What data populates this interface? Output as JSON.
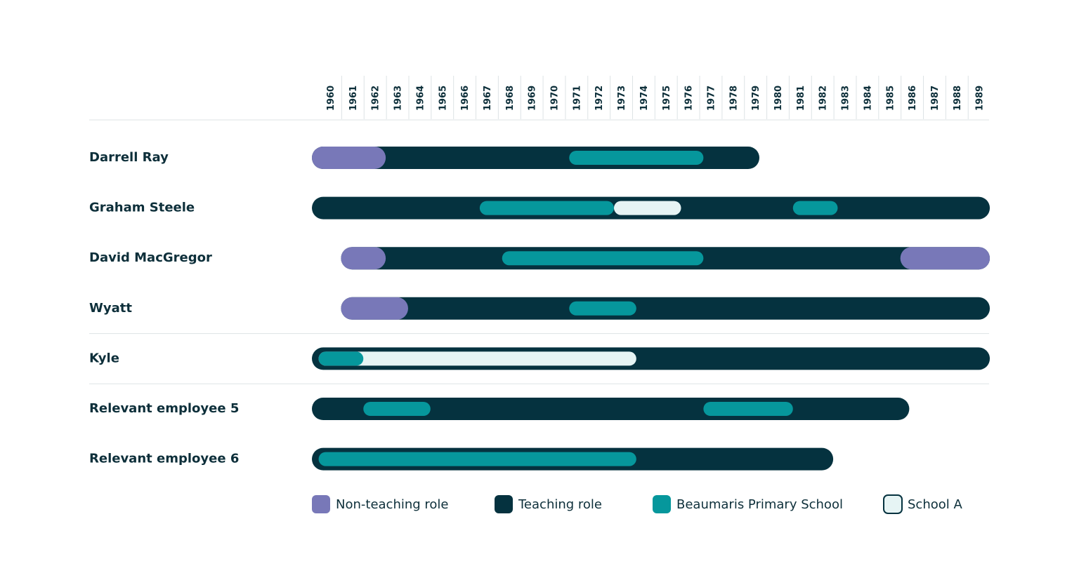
{
  "colors": {
    "non_teaching": "#7878b8",
    "teaching": "#05323f",
    "beaumaris": "#06979c",
    "school_a": "#e6f4f4",
    "divider": "#dde3e5",
    "text": "#0d2f3a"
  },
  "chart_data": {
    "type": "timeline",
    "years": [
      "1960",
      "1961",
      "1962",
      "1963",
      "1964",
      "1965",
      "1966",
      "1967",
      "1968",
      "1969",
      "1970",
      "1971",
      "1972",
      "1973",
      "1974",
      "1975",
      "1976",
      "1977",
      "1978",
      "1979",
      "1980",
      "1981",
      "1982",
      "1983",
      "1984",
      "1985",
      "1986",
      "1987",
      "1988",
      "1989"
    ],
    "legend": [
      {
        "key": "non_teaching",
        "label": "Non-teaching role"
      },
      {
        "key": "teaching",
        "label": "Teaching role"
      },
      {
        "key": "beaumaris",
        "label": "Beaumaris Primary School"
      },
      {
        "key": "school_a",
        "label": "School A"
      }
    ],
    "rows": [
      {
        "label": "Darrell Ray",
        "segments": [
          {
            "role": "teaching",
            "start": 1960,
            "end": 1980
          },
          {
            "role": "non_teaching",
            "start": 1960,
            "end": 1963.3
          },
          {
            "role": "beaumaris",
            "start": 1971.5,
            "end": 1977.5
          }
        ]
      },
      {
        "label": "Graham Steele",
        "segments": [
          {
            "role": "teaching",
            "start": 1960,
            "end": 1990.3
          },
          {
            "role": "beaumaris",
            "start": 1967.5,
            "end": 1973.5
          },
          {
            "role": "school_a",
            "start": 1973.5,
            "end": 1976.5
          },
          {
            "role": "beaumaris",
            "start": 1981.5,
            "end": 1983.5
          }
        ]
      },
      {
        "label": "David MacGregor",
        "segments": [
          {
            "role": "teaching",
            "start": 1961.3,
            "end": 1990.3
          },
          {
            "role": "non_teaching",
            "start": 1961.3,
            "end": 1963.3
          },
          {
            "role": "beaumaris",
            "start": 1968.5,
            "end": 1977.5
          },
          {
            "role": "non_teaching",
            "start": 1986.3,
            "end": 1990.3
          }
        ]
      },
      {
        "label": "Wyatt",
        "segments": [
          {
            "role": "teaching",
            "start": 1961.3,
            "end": 1990.3
          },
          {
            "role": "non_teaching",
            "start": 1961.3,
            "end": 1964.3
          },
          {
            "role": "beaumaris",
            "start": 1971.5,
            "end": 1974.5
          }
        ]
      },
      {
        "label": "Kyle",
        "segments": [
          {
            "role": "teaching",
            "start": 1960,
            "end": 1990.3
          },
          {
            "role": "school_a",
            "start": 1960.3,
            "end": 1974.5
          },
          {
            "role": "beaumaris",
            "start": 1960.3,
            "end": 1962.3
          }
        ]
      },
      {
        "label": "Relevant employee 5",
        "segments": [
          {
            "role": "teaching",
            "start": 1960,
            "end": 1986.7
          },
          {
            "role": "beaumaris",
            "start": 1962.3,
            "end": 1965.3
          },
          {
            "role": "beaumaris",
            "start": 1977.5,
            "end": 1981.5
          }
        ]
      },
      {
        "label": "Relevant employee 6",
        "segments": [
          {
            "role": "teaching",
            "start": 1960,
            "end": 1983.3
          },
          {
            "role": "beaumaris",
            "start": 1960.3,
            "end": 1974.5
          }
        ]
      }
    ],
    "dividers_after_rows": [
      "Wyatt",
      "Kyle"
    ]
  }
}
